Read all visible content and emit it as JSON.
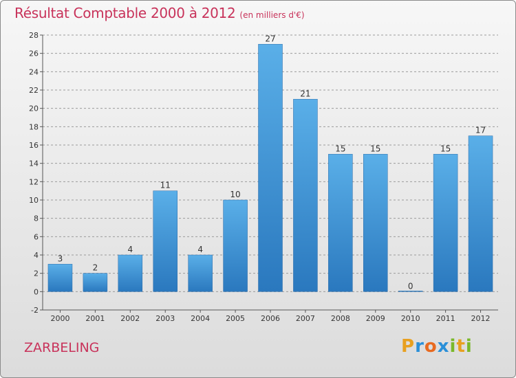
{
  "header": {
    "title": "Résultat Comptable 2000 à 2012",
    "subtitle": "(en milliers d'€)"
  },
  "footer": {
    "commune": "ZARBELING"
  },
  "logo": {
    "text": "Proxiti",
    "letters": [
      "P",
      "r",
      "o",
      "x",
      "i",
      "t",
      "i"
    ],
    "colors": [
      "#e8a020",
      "#2a8fd8",
      "#e86a20",
      "#2a8fd8",
      "#7ab82a",
      "#e8a020",
      "#7ab82a"
    ]
  },
  "colors": {
    "bar_top": "#5aafe8",
    "bar_bottom": "#2a78be",
    "grid": "#9a9a9a"
  },
  "chart_data": {
    "type": "bar",
    "title": "Résultat Comptable 2000 à 2012",
    "subtitle": "(en milliers d'€)",
    "categories": [
      "2000",
      "2001",
      "2002",
      "2003",
      "2004",
      "2005",
      "2006",
      "2007",
      "2008",
      "2009",
      "2010",
      "2011",
      "2012"
    ],
    "values": [
      3,
      2,
      4,
      11,
      4,
      10,
      27,
      21,
      15,
      15,
      0,
      15,
      17
    ],
    "ylim": [
      -2,
      28
    ],
    "yticks": [
      -2,
      0,
      2,
      4,
      6,
      8,
      10,
      12,
      14,
      16,
      18,
      20,
      22,
      24,
      26,
      28
    ],
    "xlabel": "",
    "ylabel": "",
    "grid": "dashed horizontal"
  }
}
